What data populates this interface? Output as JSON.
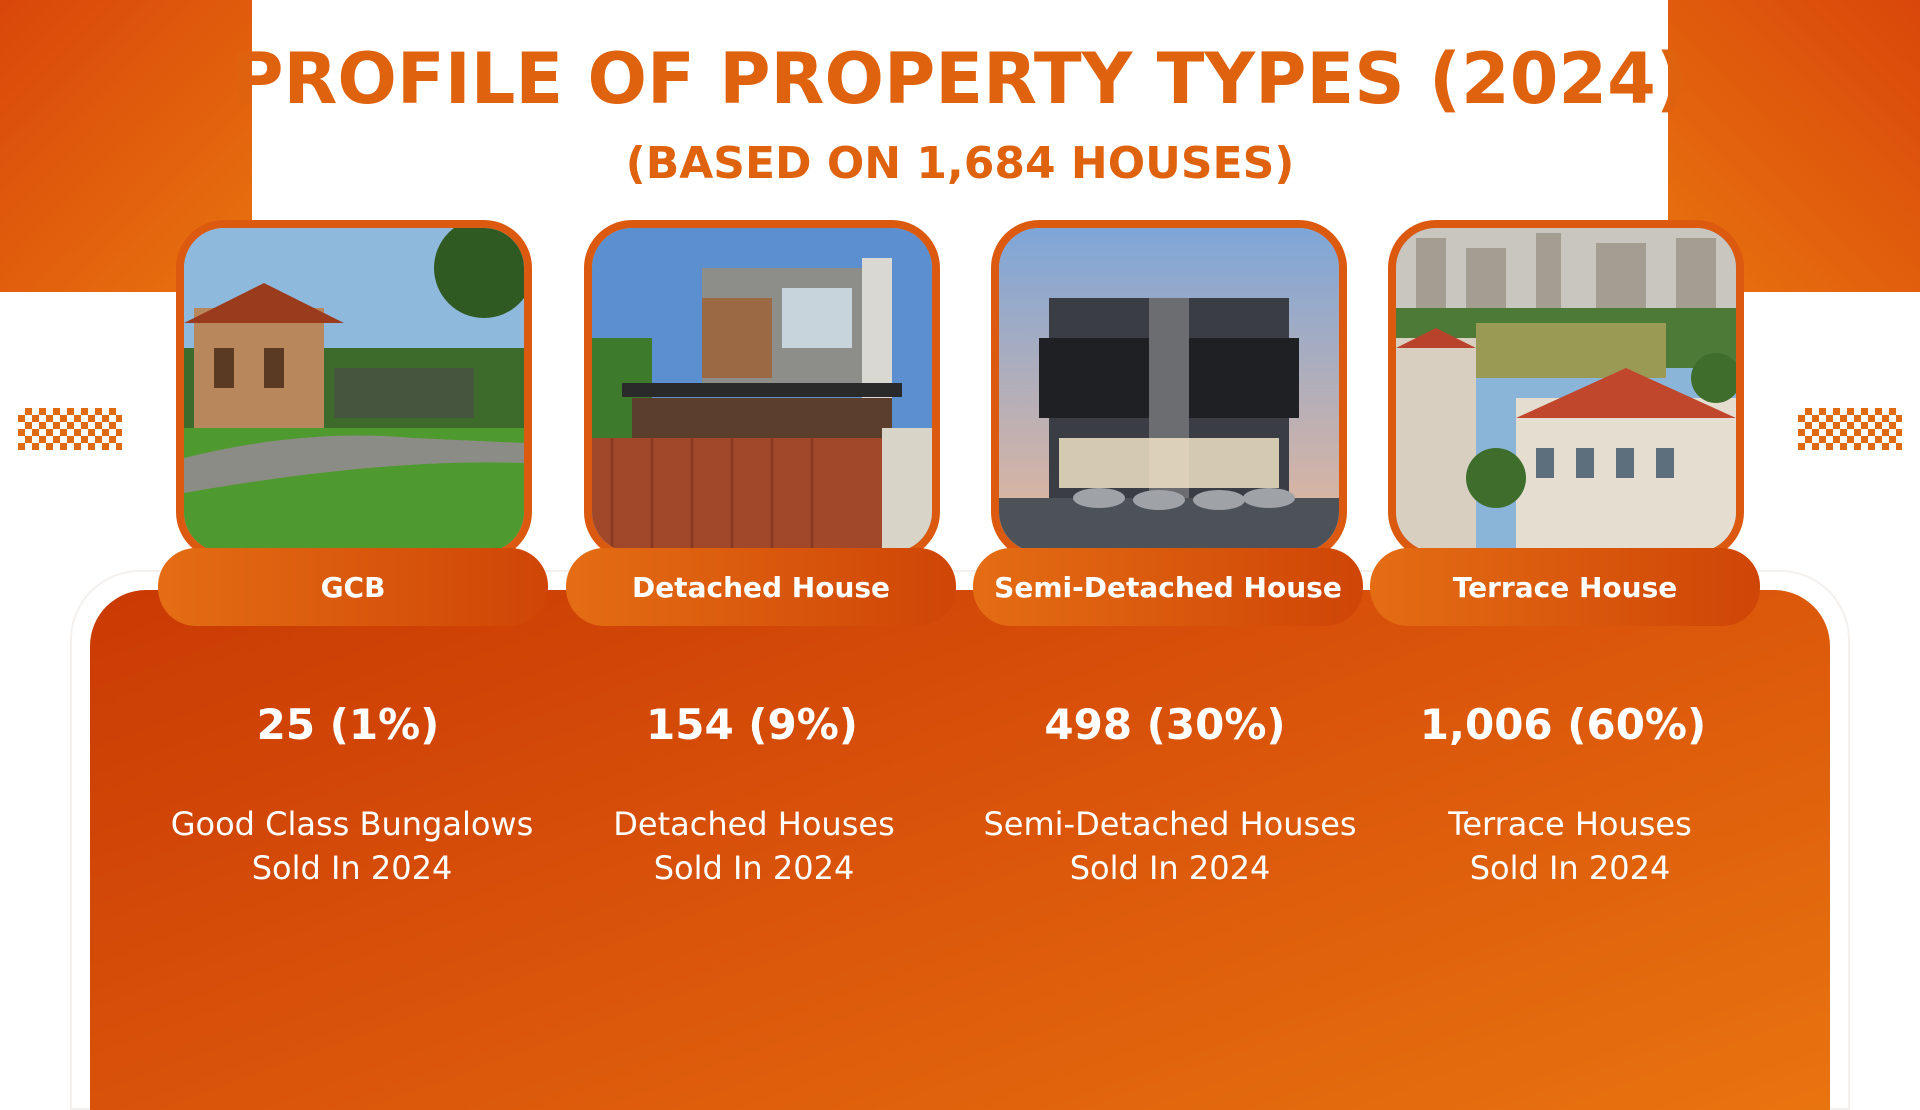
{
  "header": {
    "title": "PROFILE OF PROPERTY TYPES (2024)",
    "subtitle": "(BASED ON 1,684 HOUSES)"
  },
  "colors": {
    "accent": "#df620f",
    "panel_dark": "#c93a04",
    "panel_light": "#e8740f",
    "text_on_panel": "#ffffff"
  },
  "property_types": [
    {
      "label": "GCB",
      "stat": "25 (1%)",
      "desc_line1": "Good Class Bungalows",
      "desc_line2": "Sold In 2024"
    },
    {
      "label": "Detached House",
      "stat": "154 (9%)",
      "desc_line1": "Detached Houses",
      "desc_line2": "Sold In 2024"
    },
    {
      "label": "Semi-Detached House",
      "stat": "498 (30%)",
      "desc_line1": "Semi-Detached Houses",
      "desc_line2": "Sold In 2024"
    },
    {
      "label": "Terrace House",
      "stat": "1,006 (60%)",
      "desc_line1": "Terrace Houses",
      "desc_line2": "Sold In 2024"
    }
  ]
}
